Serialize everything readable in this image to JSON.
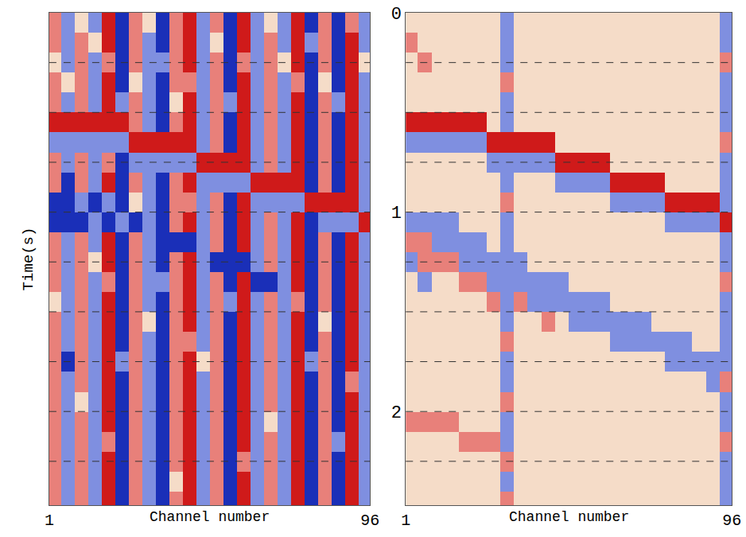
{
  "chart_data": [
    {
      "type": "heatmap",
      "xlabel": "Channel number",
      "ylabel": "Time(s)",
      "x": [
        2.5,
        6.5,
        10.5,
        14.5,
        18.5,
        22.5,
        26.5,
        30.5,
        34.5,
        38.5,
        42.5,
        46.5,
        50.5,
        54.5,
        58.5,
        62.5,
        66.5,
        70.5,
        74.5,
        78.5,
        82.5,
        86.5,
        90.5,
        94.5
      ],
      "y": [
        0.05,
        0.15,
        0.25,
        0.35,
        0.45,
        0.55,
        0.65,
        0.75,
        0.85,
        0.95,
        1.05,
        1.15,
        1.25,
        1.35,
        1.45,
        1.55,
        1.65,
        1.75,
        1.85,
        1.95,
        2.05,
        2.15,
        2.25,
        2.35,
        2.45
      ],
      "z": [
        [
          1,
          -1,
          0,
          -1,
          2,
          -2,
          1,
          0,
          -2,
          1,
          2,
          -1,
          1,
          -2,
          2,
          -1,
          0,
          -1,
          2,
          -2,
          1,
          -2,
          1,
          -1
        ],
        [
          1,
          -1,
          1,
          0,
          2,
          -2,
          1,
          -1,
          -2,
          1,
          2,
          -1,
          0,
          -2,
          2,
          -1,
          1,
          -1,
          2,
          -1,
          1,
          -2,
          2,
          -1
        ],
        [
          0,
          -1,
          1,
          -1,
          1,
          -2,
          1,
          -1,
          -1,
          1,
          2,
          -1,
          1,
          -2,
          1,
          -1,
          1,
          0,
          2,
          -2,
          1,
          -2,
          2,
          0
        ],
        [
          1,
          0,
          1,
          -1,
          2,
          -2,
          0,
          -1,
          -2,
          1,
          1,
          -1,
          1,
          -2,
          2,
          -1,
          1,
          -1,
          1,
          -2,
          0,
          -2,
          2,
          -1
        ],
        [
          1,
          -1,
          1,
          -1,
          2,
          -1,
          1,
          -1,
          -2,
          0,
          2,
          -1,
          1,
          -1,
          2,
          -1,
          1,
          -1,
          2,
          -2,
          1,
          -1,
          2,
          -1
        ],
        [
          2,
          2,
          2,
          2,
          2,
          2,
          1,
          -1,
          -2,
          1,
          2,
          -1,
          1,
          -2,
          2,
          -1,
          1,
          -1,
          2,
          -2,
          1,
          -2,
          2,
          -1
        ],
        [
          -1,
          -1,
          -1,
          -1,
          -1,
          -1,
          2,
          2,
          2,
          2,
          2,
          -1,
          1,
          -2,
          2,
          -1,
          1,
          -1,
          2,
          -2,
          1,
          -2,
          2,
          -1
        ],
        [
          1,
          -1,
          1,
          -1,
          1,
          -2,
          -1,
          -1,
          -1,
          -1,
          -1,
          2,
          2,
          2,
          2,
          -1,
          1,
          -1,
          2,
          -2,
          1,
          -2,
          2,
          -1
        ],
        [
          1,
          -2,
          1,
          -1,
          2,
          -2,
          1,
          -1,
          -2,
          1,
          2,
          -1,
          -1,
          -1,
          -1,
          2,
          2,
          2,
          2,
          -2,
          1,
          -2,
          2,
          -1
        ],
        [
          -2,
          -2,
          -1,
          -2,
          -1,
          -2,
          0,
          -1,
          -2,
          1,
          1,
          -1,
          1,
          -2,
          2,
          -1,
          -1,
          -1,
          -1,
          2,
          2,
          2,
          2,
          -1
        ],
        [
          -2,
          -2,
          -2,
          -1,
          -2,
          -1,
          -2,
          -1,
          -2,
          1,
          2,
          -1,
          1,
          -2,
          2,
          -1,
          1,
          -1,
          2,
          -2,
          -1,
          -1,
          -1,
          2
        ],
        [
          1,
          -1,
          1,
          -1,
          2,
          -2,
          1,
          -1,
          -2,
          -2,
          -2,
          -1,
          1,
          -2,
          2,
          -1,
          1,
          -1,
          2,
          -2,
          1,
          -2,
          2,
          -1
        ],
        [
          1,
          -1,
          1,
          0,
          2,
          -2,
          1,
          -1,
          -2,
          1,
          2,
          -1,
          -2,
          -2,
          -2,
          -1,
          1,
          -1,
          2,
          -2,
          1,
          -2,
          2,
          -1
        ],
        [
          1,
          -1,
          1,
          -1,
          1,
          -2,
          1,
          -1,
          -1,
          1,
          2,
          -1,
          1,
          -2,
          2,
          -2,
          -2,
          -1,
          2,
          -2,
          1,
          -2,
          2,
          -1
        ],
        [
          0,
          -1,
          1,
          -1,
          2,
          -2,
          1,
          -1,
          -2,
          1,
          2,
          -1,
          1,
          -1,
          2,
          -1,
          1,
          -1,
          1,
          -2,
          1,
          -2,
          2,
          -1
        ],
        [
          1,
          -1,
          1,
          -1,
          2,
          -2,
          1,
          0,
          -2,
          1,
          2,
          -1,
          1,
          -2,
          2,
          -1,
          1,
          -1,
          2,
          -2,
          0,
          -2,
          2,
          -1
        ],
        [
          1,
          -1,
          1,
          -1,
          2,
          -2,
          1,
          -1,
          -2,
          1,
          1,
          -1,
          1,
          -2,
          2,
          -1,
          1,
          -1,
          2,
          -2,
          1,
          -2,
          2,
          -1
        ],
        [
          1,
          -2,
          1,
          -1,
          2,
          -1,
          1,
          -1,
          -2,
          1,
          2,
          0,
          1,
          -2,
          2,
          -1,
          1,
          -1,
          2,
          -1,
          1,
          -2,
          2,
          -1
        ],
        [
          1,
          -1,
          1,
          -1,
          2,
          -2,
          1,
          -1,
          -2,
          1,
          2,
          -1,
          1,
          -2,
          2,
          -1,
          1,
          -1,
          2,
          -2,
          1,
          -2,
          1,
          -1
        ],
        [
          1,
          -1,
          0,
          -1,
          2,
          -2,
          1,
          -1,
          -2,
          1,
          2,
          -1,
          1,
          -2,
          2,
          -1,
          1,
          -1,
          2,
          -2,
          1,
          -2,
          2,
          -1
        ],
        [
          1,
          -1,
          1,
          -1,
          2,
          -2,
          1,
          -1,
          -2,
          1,
          2,
          -1,
          1,
          -2,
          2,
          -1,
          0,
          -1,
          2,
          -2,
          1,
          -2,
          2,
          -1
        ],
        [
          1,
          -1,
          1,
          -1,
          1,
          -2,
          1,
          -1,
          -2,
          1,
          2,
          -1,
          1,
          -2,
          2,
          -1,
          1,
          -1,
          2,
          -2,
          1,
          -1,
          2,
          -1
        ],
        [
          1,
          -1,
          1,
          -1,
          2,
          -2,
          1,
          -1,
          -2,
          1,
          2,
          -1,
          1,
          -2,
          1,
          -1,
          1,
          -1,
          2,
          -2,
          1,
          -2,
          2,
          -1
        ],
        [
          1,
          -1,
          1,
          -1,
          2,
          -2,
          1,
          -1,
          -2,
          0,
          2,
          -1,
          1,
          -2,
          2,
          -1,
          1,
          -1,
          2,
          -2,
          1,
          -2,
          2,
          -1
        ],
        [
          1,
          -1,
          1,
          -1,
          2,
          -2,
          1,
          -1,
          -2,
          1,
          2,
          -1,
          1,
          -2,
          2,
          -1,
          1,
          -1,
          2,
          -2,
          1,
          -2,
          2,
          -1
        ]
      ],
      "zlim": [
        -2,
        2
      ],
      "xlim": [
        1,
        96
      ],
      "ylim": [
        2.47,
        0
      ],
      "xticks": [
        1,
        96
      ],
      "ygrid": [
        0.25,
        0.5,
        0.75,
        1,
        1.25,
        1.5,
        1.75,
        2,
        2.25
      ],
      "grid": true,
      "tick_labels": "x"
    },
    {
      "type": "heatmap",
      "xlabel": "Channel number",
      "x": [
        2.5,
        6.5,
        10.5,
        14.5,
        18.5,
        22.5,
        26.5,
        30.5,
        34.5,
        38.5,
        42.5,
        46.5,
        50.5,
        54.5,
        58.5,
        62.5,
        66.5,
        70.5,
        74.5,
        78.5,
        82.5,
        86.5,
        90.5,
        94.5
      ],
      "y": [
        0.05,
        0.15,
        0.25,
        0.35,
        0.45,
        0.55,
        0.65,
        0.75,
        0.85,
        0.95,
        1.05,
        1.15,
        1.25,
        1.35,
        1.45,
        1.55,
        1.65,
        1.75,
        1.85,
        1.95,
        2.05,
        2.15,
        2.25,
        2.35,
        2.45
      ],
      "z": [
        [
          0,
          0,
          0,
          0,
          0,
          0,
          0,
          -1,
          0,
          0,
          0,
          0,
          0,
          0,
          0,
          0,
          0,
          0,
          0,
          0,
          0,
          0,
          0,
          -1
        ],
        [
          1,
          0,
          0,
          0,
          0,
          0,
          0,
          -1,
          0,
          0,
          0,
          0,
          0,
          0,
          0,
          0,
          0,
          0,
          0,
          0,
          0,
          0,
          0,
          -1
        ],
        [
          0,
          1,
          0,
          0,
          0,
          0,
          0,
          -1,
          0,
          0,
          0,
          0,
          0,
          0,
          0,
          0,
          0,
          0,
          0,
          0,
          0,
          0,
          0,
          1
        ],
        [
          0,
          0,
          0,
          0,
          0,
          0,
          0,
          1,
          0,
          0,
          0,
          0,
          0,
          0,
          0,
          0,
          0,
          0,
          0,
          0,
          0,
          0,
          0,
          -1
        ],
        [
          0,
          0,
          0,
          0,
          0,
          0,
          0,
          -1,
          0,
          0,
          0,
          0,
          0,
          0,
          0,
          0,
          0,
          0,
          0,
          0,
          0,
          0,
          0,
          -1
        ],
        [
          2,
          2,
          2,
          2,
          2,
          2,
          0,
          -1,
          0,
          0,
          0,
          0,
          0,
          0,
          0,
          0,
          0,
          0,
          0,
          0,
          0,
          0,
          0,
          -1
        ],
        [
          -1,
          -1,
          -1,
          -1,
          -1,
          -1,
          2,
          2,
          2,
          2,
          2,
          0,
          0,
          0,
          0,
          0,
          0,
          0,
          0,
          0,
          0,
          0,
          0,
          1
        ],
        [
          0,
          0,
          0,
          0,
          0,
          0,
          -1,
          -1,
          -1,
          -1,
          -1,
          2,
          2,
          2,
          2,
          0,
          0,
          0,
          0,
          0,
          0,
          0,
          0,
          -1
        ],
        [
          0,
          0,
          0,
          0,
          0,
          0,
          0,
          -1,
          0,
          0,
          0,
          -1,
          -1,
          -1,
          -1,
          2,
          2,
          2,
          2,
          0,
          0,
          0,
          0,
          -1
        ],
        [
          0,
          0,
          0,
          0,
          0,
          0,
          0,
          1,
          0,
          0,
          0,
          0,
          0,
          0,
          0,
          -1,
          -1,
          -1,
          -1,
          2,
          2,
          2,
          2,
          -1
        ],
        [
          -1,
          -1,
          -1,
          -1,
          0,
          0,
          0,
          -1,
          0,
          0,
          0,
          0,
          0,
          0,
          0,
          0,
          0,
          0,
          0,
          -1,
          -1,
          -1,
          -1,
          2
        ],
        [
          1,
          1,
          -1,
          -1,
          -1,
          -1,
          0,
          -1,
          0,
          0,
          0,
          0,
          0,
          0,
          0,
          0,
          0,
          0,
          0,
          0,
          0,
          0,
          0,
          -1
        ],
        [
          -1,
          1,
          1,
          1,
          -1,
          -1,
          -1,
          -1,
          -1,
          0,
          0,
          0,
          0,
          0,
          0,
          0,
          0,
          0,
          0,
          0,
          0,
          0,
          0,
          -1
        ],
        [
          0,
          -1,
          0,
          0,
          1,
          1,
          -1,
          -1,
          -1,
          -1,
          -1,
          -1,
          0,
          0,
          0,
          0,
          0,
          0,
          0,
          0,
          0,
          0,
          0,
          1
        ],
        [
          0,
          0,
          0,
          0,
          0,
          0,
          1,
          -1,
          1,
          -1,
          -1,
          -1,
          -1,
          -1,
          -1,
          0,
          0,
          0,
          0,
          0,
          0,
          0,
          0,
          -1
        ],
        [
          0,
          0,
          0,
          0,
          0,
          0,
          0,
          -1,
          0,
          0,
          1,
          0,
          -1,
          -1,
          -1,
          -1,
          -1,
          -1,
          0,
          0,
          0,
          0,
          0,
          -1
        ],
        [
          0,
          0,
          0,
          0,
          0,
          0,
          0,
          1,
          0,
          0,
          0,
          0,
          0,
          0,
          0,
          -1,
          -1,
          -1,
          -1,
          -1,
          -1,
          0,
          0,
          -1
        ],
        [
          0,
          0,
          0,
          0,
          0,
          0,
          0,
          -1,
          0,
          0,
          0,
          0,
          0,
          0,
          0,
          0,
          0,
          0,
          0,
          -1,
          -1,
          -1,
          -1,
          -1
        ],
        [
          0,
          0,
          0,
          0,
          0,
          0,
          0,
          -1,
          0,
          0,
          0,
          0,
          0,
          0,
          0,
          0,
          0,
          0,
          0,
          0,
          0,
          0,
          -1,
          1
        ],
        [
          0,
          0,
          0,
          0,
          0,
          0,
          0,
          1,
          0,
          0,
          0,
          0,
          0,
          0,
          0,
          0,
          0,
          0,
          0,
          0,
          0,
          0,
          0,
          -1
        ],
        [
          1,
          1,
          1,
          1,
          0,
          0,
          0,
          -1,
          0,
          0,
          0,
          0,
          0,
          0,
          0,
          0,
          0,
          0,
          0,
          0,
          0,
          0,
          0,
          -1
        ],
        [
          0,
          0,
          0,
          0,
          1,
          1,
          1,
          -1,
          0,
          0,
          0,
          0,
          0,
          0,
          0,
          0,
          0,
          0,
          0,
          0,
          0,
          0,
          0,
          1
        ],
        [
          0,
          0,
          0,
          0,
          0,
          0,
          0,
          1,
          0,
          0,
          0,
          0,
          0,
          0,
          0,
          0,
          0,
          0,
          0,
          0,
          0,
          0,
          0,
          -1
        ],
        [
          0,
          0,
          0,
          0,
          0,
          0,
          0,
          -1,
          0,
          0,
          0,
          0,
          0,
          0,
          0,
          0,
          0,
          0,
          0,
          0,
          0,
          0,
          0,
          -1
        ],
        [
          0,
          0,
          0,
          0,
          0,
          0,
          0,
          1,
          0,
          0,
          0,
          0,
          0,
          0,
          0,
          0,
          0,
          0,
          0,
          0,
          0,
          0,
          0,
          -1
        ]
      ],
      "zlim": [
        -2,
        2
      ],
      "xlim": [
        1,
        96
      ],
      "ylim": [
        2.47,
        0
      ],
      "xticks": [
        1,
        96
      ],
      "yticks": [
        0,
        1,
        2
      ],
      "ygrid": [
        0.25,
        0.5,
        0.75,
        1,
        1.25,
        1.5,
        1.75,
        2,
        2.25
      ],
      "grid": true
    }
  ]
}
